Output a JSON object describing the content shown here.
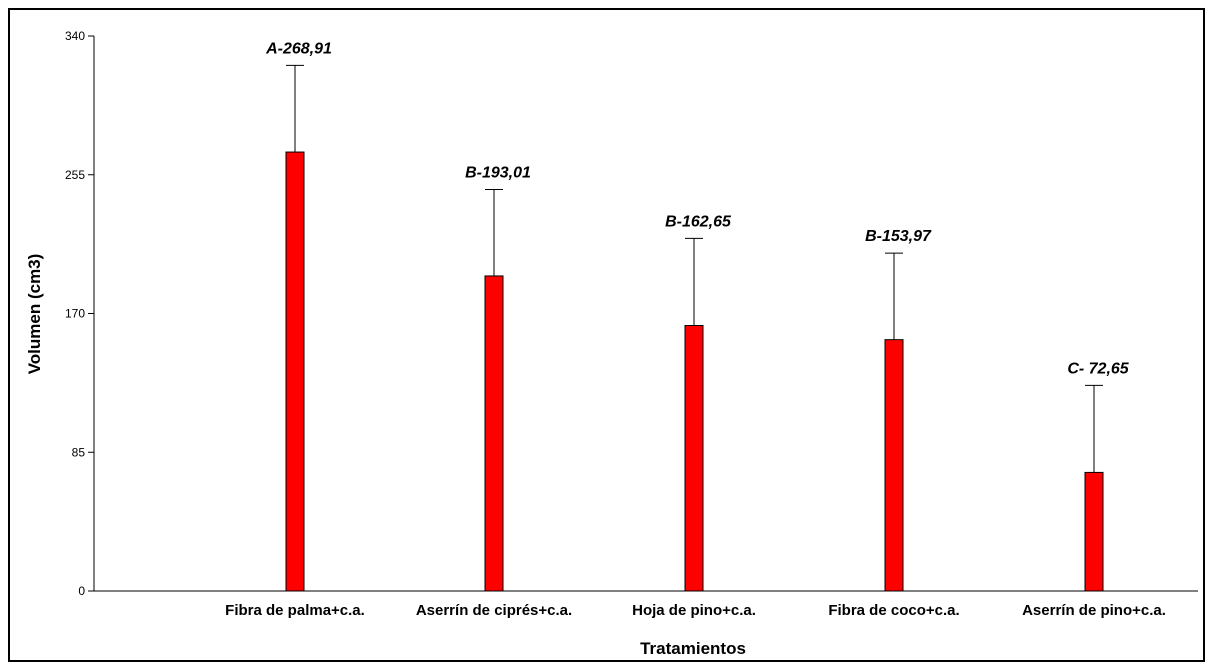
{
  "chart_data": {
    "type": "bar",
    "categories": [
      "Fibra de palma+c.a.",
      "Aserrín de ciprés+c.a.",
      "Hoja de pino+c.a.",
      "Fibra de coco+c.a.",
      "Aserrín de pino+c.a."
    ],
    "values": [
      268.91,
      193.01,
      162.65,
      153.97,
      72.65
    ],
    "error_upper": [
      322,
      246,
      216,
      207,
      126
    ],
    "data_labels": [
      "A-268,91",
      "B-193,01",
      "B-162,65",
      "B-153,97",
      "C- 72,65"
    ],
    "xlabel": "Tratamientos",
    "ylabel": "Volumen (cm3)",
    "ylim": [
      0,
      340
    ],
    "yticks": [
      "0",
      "85",
      "170",
      "255",
      "340"
    ],
    "grid": false,
    "bar_color": "#ff0000",
    "bar_outline_color": "#000000"
  }
}
